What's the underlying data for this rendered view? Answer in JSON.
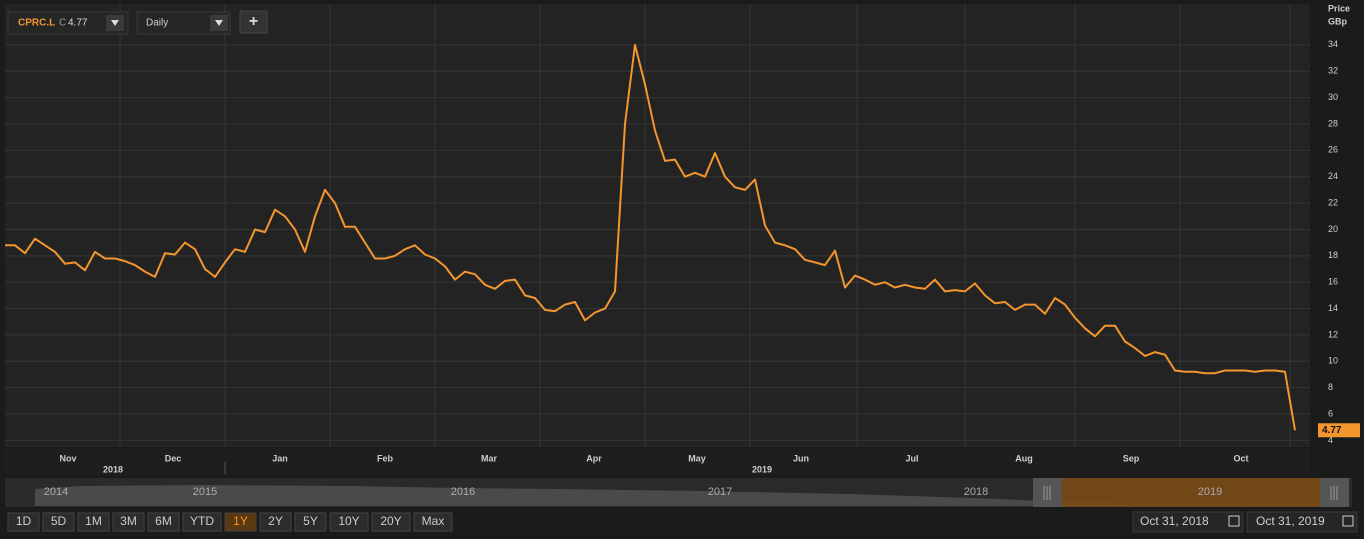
{
  "toolbar": {
    "symbol": "CPRC.L",
    "close_prefix": "C",
    "interval": "Daily",
    "add": "+"
  },
  "chart_data": {
    "type": "line",
    "ylabel": "Price",
    "yunit": "GBp",
    "color": "#f4962e",
    "grid": true,
    "values": [
      18.8,
      18.8,
      18.2,
      19.3,
      18.8,
      18.3,
      17.4,
      17.5,
      16.9,
      18.3,
      17.8,
      17.8,
      17.6,
      17.3,
      16.8,
      16.4,
      18.2,
      18.1,
      19.0,
      18.5,
      17.0,
      16.4,
      17.5,
      18.5,
      18.3,
      20.0,
      19.8,
      21.5,
      21.0,
      20.0,
      18.3,
      21.0,
      23.0,
      22.0,
      20.2,
      20.2,
      19.0,
      17.8,
      17.8,
      18.0,
      18.5,
      18.8,
      18.1,
      17.8,
      17.2,
      16.2,
      16.8,
      16.6,
      15.8,
      15.5,
      16.1,
      16.2,
      15.0,
      14.8,
      13.9,
      13.8,
      14.3,
      14.5,
      13.1,
      13.7,
      14.0,
      15.3,
      28.0,
      34.0,
      31.0,
      27.5,
      25.2,
      25.3,
      24.0,
      24.3,
      24.0,
      25.8,
      24.0,
      23.2,
      23.0,
      23.8,
      20.3,
      19.0,
      18.8,
      18.5,
      17.7,
      17.5,
      17.3,
      18.4,
      15.6,
      16.5,
      16.2,
      15.8,
      16.0,
      15.6,
      15.8,
      15.6,
      15.5,
      16.2,
      15.3,
      15.4,
      15.3,
      15.9,
      15.0,
      14.4,
      14.5,
      13.9,
      14.3,
      14.3,
      13.6,
      14.8,
      14.3,
      13.3,
      12.5,
      11.9,
      12.7,
      12.7,
      11.5,
      11.0,
      10.4,
      10.7,
      10.5,
      9.3,
      9.2,
      9.2,
      9.1,
      9.1,
      9.3,
      9.3,
      9.3,
      9.2,
      9.3,
      9.3,
      9.2,
      4.77
    ],
    "xlim": [
      0,
      130.5
    ],
    "ylim": [
      3.5,
      37.1
    ],
    "yticks": [
      4,
      6,
      8,
      10,
      12,
      14,
      16,
      18,
      20,
      22,
      24,
      26,
      28,
      30,
      32,
      34
    ],
    "xticks": [
      {
        "value": 6.3,
        "label": "Nov"
      },
      {
        "value": 16.8,
        "label": "Dec"
      },
      {
        "value": 27.5,
        "label": "Jan"
      },
      {
        "value": 38,
        "label": "Feb"
      },
      {
        "value": 48.4,
        "label": "Mar"
      },
      {
        "value": 58.9,
        "label": "Apr"
      },
      {
        "value": 69.2,
        "label": "May"
      },
      {
        "value": 79.6,
        "label": "Jun"
      },
      {
        "value": 90.7,
        "label": "Jul"
      },
      {
        "value": 101.9,
        "label": "Aug"
      },
      {
        "value": 112.6,
        "label": "Sep"
      },
      {
        "value": 123.6,
        "label": "Oct"
      }
    ],
    "year_labels": [
      {
        "value": 10.8,
        "label": "2018"
      },
      {
        "value": 75.7,
        "label": "2019"
      }
    ],
    "xgrid": [
      11.5,
      22,
      32.5,
      43,
      53.5,
      64,
      74.5,
      85.2,
      96,
      107,
      117.5,
      128.5
    ]
  },
  "navigator": {
    "years": [
      "2014",
      "2015",
      "2016",
      "2017",
      "2018",
      "2019"
    ]
  },
  "range_buttons": [
    "1D",
    "5D",
    "1M",
    "3M",
    "6M",
    "YTD",
    "1Y",
    "2Y",
    "5Y",
    "10Y",
    "20Y",
    "Max"
  ],
  "selected_range": "1Y",
  "date_range": {
    "from": "Oct 31, 2018",
    "to": "Oct 31, 2019"
  }
}
